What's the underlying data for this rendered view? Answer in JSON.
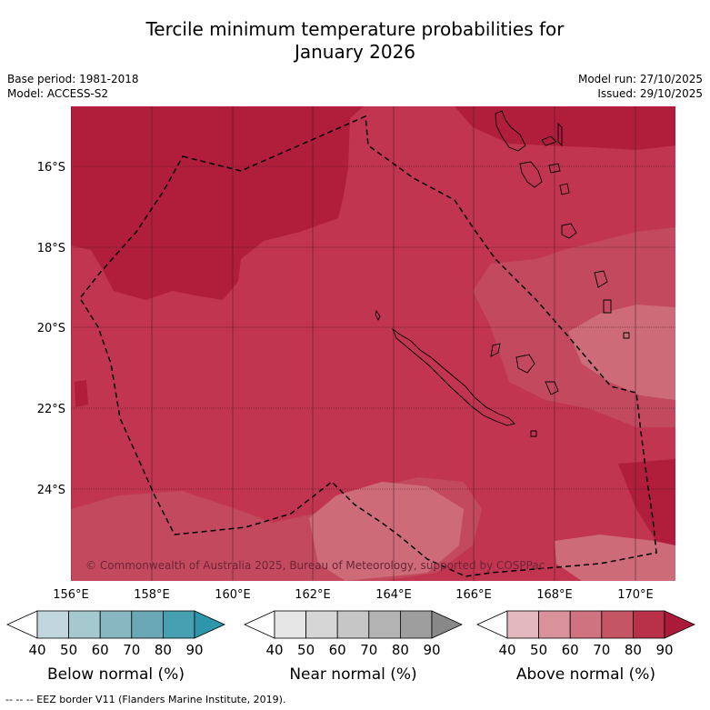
{
  "header": {
    "title_line1": "Tercile minimum temperature probabilities for",
    "title_line2": "January 2026",
    "base_period": "Base period: 1981-2018",
    "model": "Model: ACCESS-S2",
    "model_run": "Model run: 27/10/2025",
    "issued": "Issued: 29/10/2025"
  },
  "map": {
    "lat_labels": [
      "16°S",
      "18°S",
      "20°S",
      "22°S",
      "24°S"
    ],
    "lon_labels": [
      "156°E",
      "158°E",
      "160°E",
      "162°E",
      "164°E",
      "166°E",
      "168°E",
      "170°E"
    ],
    "copyright": "© Commonwealth of Australia 2025, Bureau of Meteorology, supported by COSPPac",
    "colors": {
      "ocean_base": "#c13550",
      "high_prob": "#b01e3c",
      "mid_prob": "#c34a5e",
      "low_prob": "#cd6b79",
      "eez_line": "#000000"
    }
  },
  "legend": {
    "tick_values": [
      "40",
      "50",
      "60",
      "70",
      "80",
      "90"
    ],
    "below": {
      "label": "Below normal (%)",
      "colors": [
        "#ffffff",
        "#c2d7dd",
        "#a6c8cf",
        "#88b7c2",
        "#6aa8b5",
        "#46a0b2",
        "#2d96aa"
      ]
    },
    "near": {
      "label": "Near normal (%)",
      "colors": [
        "#ffffff",
        "#e6e6e6",
        "#d6d6d6",
        "#c6c6c6",
        "#b4b4b4",
        "#9e9e9e",
        "#888888"
      ]
    },
    "above": {
      "label": "Above normal (%)",
      "colors": [
        "#ffffff",
        "#e3b8bf",
        "#d9929c",
        "#ce737f",
        "#c45565",
        "#b83149",
        "#ab1a38"
      ]
    }
  },
  "footnote": "-- -- -- EEZ border V11 (Flanders Marine Institute, 2019)."
}
